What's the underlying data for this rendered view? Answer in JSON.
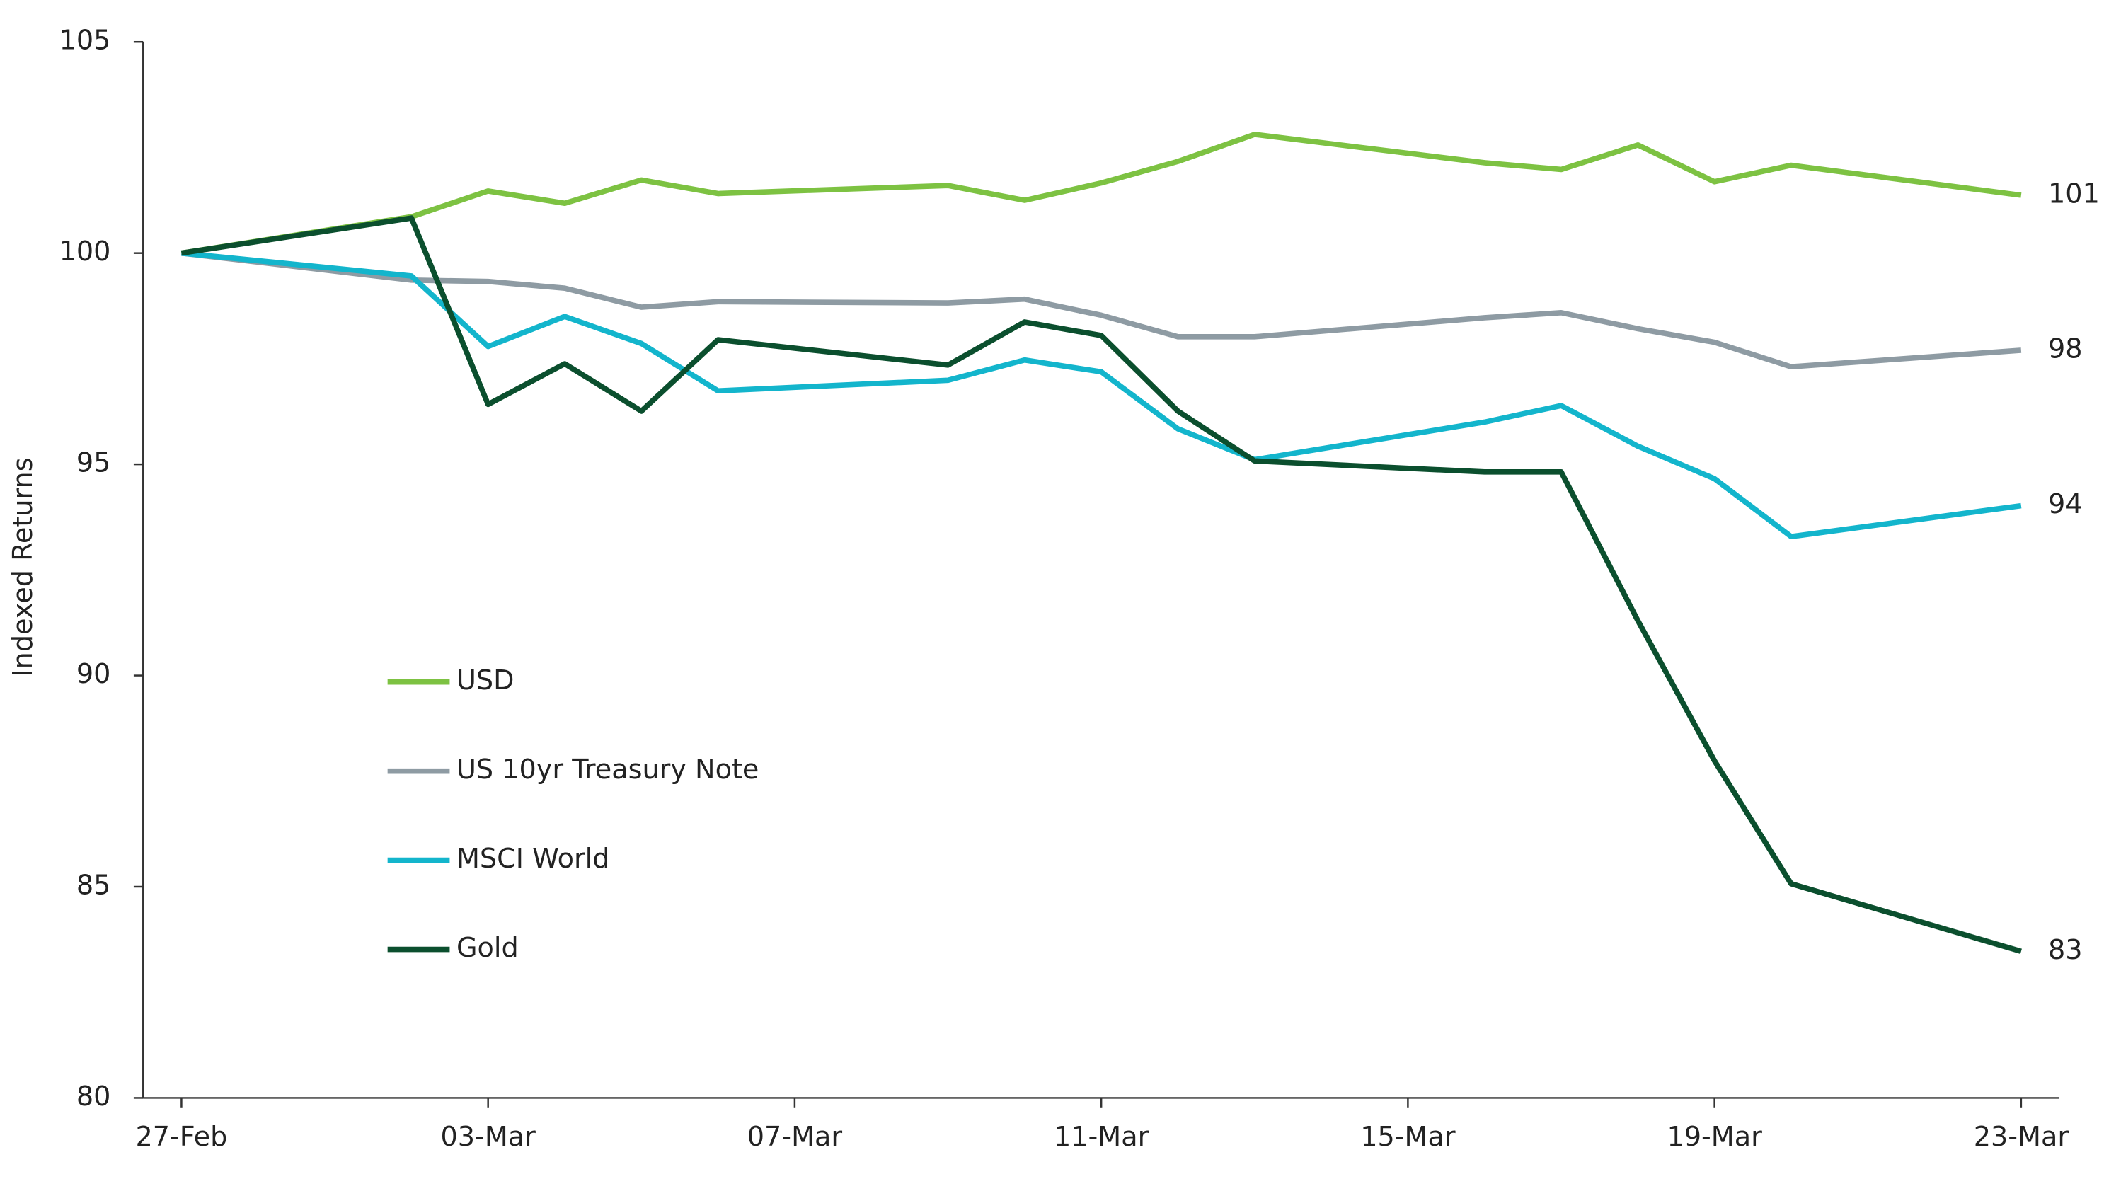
{
  "chart_data": {
    "type": "line",
    "y_label": "Indexed Returns",
    "x": [
      "27-Feb",
      "02-Mar",
      "03-Mar",
      "04-Mar",
      "05-Mar",
      "06-Mar",
      "09-Mar",
      "10-Mar",
      "11-Mar",
      "12-Mar",
      "13-Mar",
      "16-Mar",
      "17-Mar",
      "18-Mar",
      "19-Mar",
      "20-Mar",
      "23-Mar"
    ],
    "xticks": [
      "27-Feb",
      "03-Mar",
      "07-Mar",
      "11-Mar",
      "15-Mar",
      "19-Mar",
      "23-Mar"
    ],
    "ylim": [
      80,
      105
    ],
    "yticks": [
      80,
      85,
      90,
      95,
      100,
      105
    ],
    "grid": false,
    "legend": "center-left",
    "series": [
      {
        "name": "USD",
        "color": "#7dc242",
        "values": [
          100,
          100.86,
          101.47,
          101.18,
          101.73,
          101.41,
          101.6,
          101.25,
          101.66,
          102.17,
          102.81,
          102.14,
          101.98,
          102.56,
          101.69,
          102.08,
          101.37
        ],
        "value_labels": [
          null,
          null,
          null,
          null,
          null,
          null,
          null,
          null,
          null,
          null,
          null,
          null,
          null,
          null,
          null,
          null,
          "101"
        ]
      },
      {
        "name": "US 10yr Treasury Note",
        "color": "#8e9ba3",
        "values": [
          100,
          99.36,
          99.33,
          99.17,
          98.72,
          98.85,
          98.82,
          98.91,
          98.53,
          98.02,
          98.02,
          98.47,
          98.59,
          98.21,
          97.89,
          97.31,
          97.7
        ],
        "value_labels": [
          null,
          null,
          null,
          null,
          null,
          null,
          null,
          null,
          null,
          null,
          null,
          null,
          null,
          null,
          null,
          null,
          "98"
        ]
      },
      {
        "name": "MSCI World",
        "color": "#13b5cc",
        "values": [
          100,
          99.46,
          97.79,
          98.5,
          97.86,
          96.74,
          96.99,
          97.47,
          97.19,
          95.84,
          95.11,
          96.0,
          96.39,
          95.43,
          94.66,
          93.29,
          94.02
        ],
        "value_labels": [
          null,
          null,
          null,
          null,
          null,
          null,
          null,
          null,
          null,
          null,
          null,
          null,
          null,
          null,
          null,
          null,
          "94"
        ]
      },
      {
        "name": "Gold",
        "color": "#0b4f2e",
        "values": [
          100,
          100.83,
          96.42,
          97.38,
          96.26,
          97.95,
          97.35,
          98.37,
          98.05,
          96.26,
          95.08,
          94.82,
          94.82,
          91.3,
          87.98,
          85.07,
          83.47
        ],
        "value_labels": [
          null,
          null,
          null,
          null,
          null,
          null,
          null,
          null,
          null,
          null,
          null,
          null,
          null,
          null,
          null,
          null,
          "83"
        ]
      }
    ]
  }
}
